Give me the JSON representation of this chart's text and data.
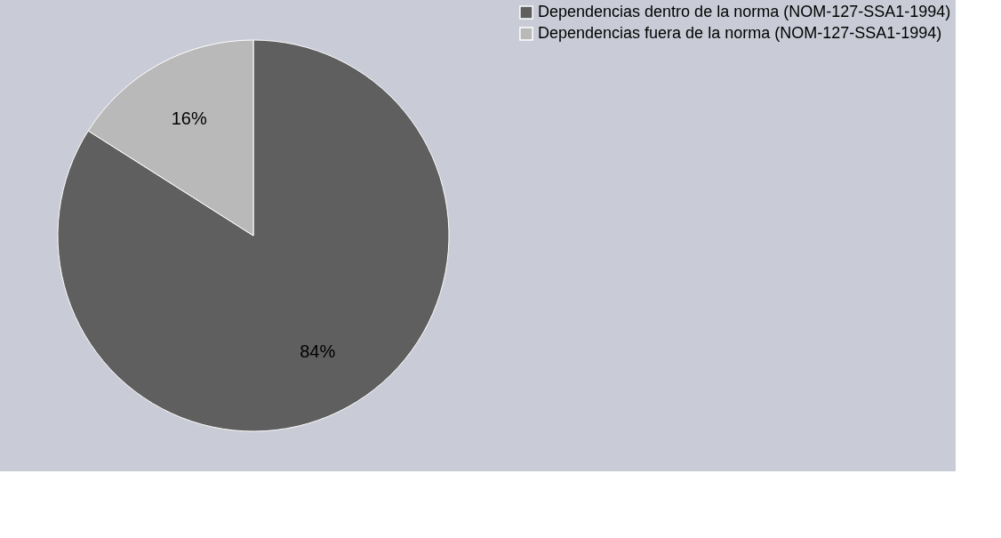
{
  "chart_data": {
    "type": "pie",
    "categories": [
      "Dependencias dentro de la norma (NOM-127-SSA1-1994)",
      "Dependencias fuera de la norma (NOM-127-SSA1-1994)"
    ],
    "values": [
      84,
      16
    ],
    "colors": [
      "#5f5f5f",
      "#b9b9b9"
    ],
    "value_labels": [
      "84%",
      "16%"
    ],
    "legend": "right"
  }
}
